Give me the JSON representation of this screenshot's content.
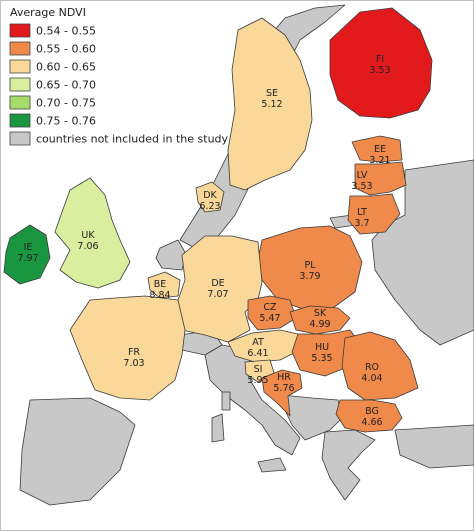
{
  "legend": {
    "title": "Average NDVI",
    "classes": [
      {
        "label": "0.54 - 0.55",
        "color": "#e31a1c"
      },
      {
        "label": "0.55 - 0.60",
        "color": "#f08a4b"
      },
      {
        "label": "0.60 - 0.65",
        "color": "#f9d899"
      },
      {
        "label": "0.65 - 0.70",
        "color": "#d9ef9f"
      },
      {
        "label": "0.70 - 0.75",
        "color": "#a6dc6a"
      },
      {
        "label": "0.75 - 0.76",
        "color": "#1a9641"
      },
      {
        "label": "countries not included in the study",
        "color": "#c8c8c8"
      }
    ]
  },
  "countries": {
    "FI": {
      "code": "FI",
      "value": "3.53",
      "color": "#e31a1c"
    },
    "SE": {
      "code": "SE",
      "value": "5.12",
      "color": "#f9d899"
    },
    "EE": {
      "code": "EE",
      "value": "3.21",
      "color": "#f08a4b"
    },
    "LV": {
      "code": "LV",
      "value": "3.53",
      "color": "#f08a4b"
    },
    "LT": {
      "code": "LT",
      "value": "3.7",
      "color": "#f08a4b"
    },
    "DK": {
      "code": "DK",
      "value": "6.23",
      "color": "#f9d899"
    },
    "UK": {
      "code": "UK",
      "value": "7.06",
      "color": "#d9ef9f"
    },
    "IE": {
      "code": "IE",
      "value": "7.97",
      "color": "#1a9641"
    },
    "PL": {
      "code": "PL",
      "value": "3.79",
      "color": "#f08a4b"
    },
    "DE": {
      "code": "DE",
      "value": "7.07",
      "color": "#f9d899"
    },
    "BE": {
      "code": "BE",
      "value": "8.84",
      "color": "#f9d899"
    },
    "CZ": {
      "code": "CZ",
      "value": "5.47",
      "color": "#f08a4b"
    },
    "SK": {
      "code": "SK",
      "value": "4.99",
      "color": "#f08a4b"
    },
    "FR": {
      "code": "FR",
      "value": "7.03",
      "color": "#f9d899"
    },
    "AT": {
      "code": "AT",
      "value": "6.41",
      "color": "#f9d899"
    },
    "HU": {
      "code": "HU",
      "value": "5.35",
      "color": "#f08a4b"
    },
    "RO": {
      "code": "RO",
      "value": "4.04",
      "color": "#f08a4b"
    },
    "SI": {
      "code": "SI",
      "value": "5.95",
      "color": "#f9d899"
    },
    "HR": {
      "code": "HR",
      "value": "5.76",
      "color": "#f08a4b"
    },
    "BG": {
      "code": "BG",
      "value": "4.66",
      "color": "#f08a4b"
    }
  },
  "excluded_color": "#c8c8c8"
}
